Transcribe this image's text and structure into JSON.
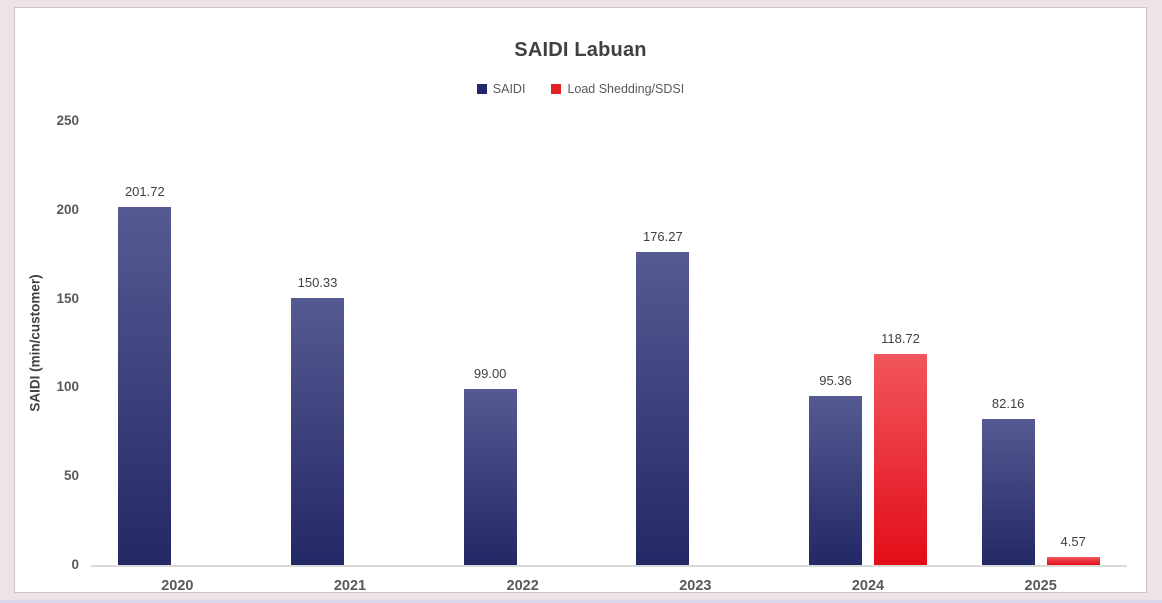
{
  "chart_data": {
    "type": "bar",
    "title": "SAIDI Labuan",
    "categories": [
      "2020",
      "2021",
      "2022",
      "2023",
      "2024",
      "2025"
    ],
    "series": [
      {
        "name": "SAIDI",
        "color": "#23276b",
        "gradient_top": "#555a92",
        "gradient_bottom": "#232866",
        "values": [
          201.72,
          150.33,
          99.0,
          176.27,
          95.36,
          82.16
        ]
      },
      {
        "name": "Load Shedding/SDSI",
        "color": "#e32026",
        "gradient_top": "#f2565e",
        "gradient_bottom": "#e20d18",
        "values": [
          null,
          null,
          null,
          null,
          118.72,
          4.57
        ]
      }
    ],
    "xlabel": "",
    "ylabel": "SAIDI (min/customer)",
    "ylim": [
      0,
      250
    ],
    "yticks": [
      0,
      50,
      100,
      150,
      200,
      250
    ],
    "grid": false,
    "legend_position": "top",
    "value_label_decimals": 2
  },
  "colors": {
    "worksheet_background": "#eee3e7",
    "chart_background": "#ffffff",
    "chart_border": "#ccc5ca",
    "title_text": "#404040",
    "axis_text": "#595959",
    "value_label_text": "#404040",
    "axis_line": "#d9d9d9",
    "sheet_bottom_line": "#d9d7eb"
  }
}
